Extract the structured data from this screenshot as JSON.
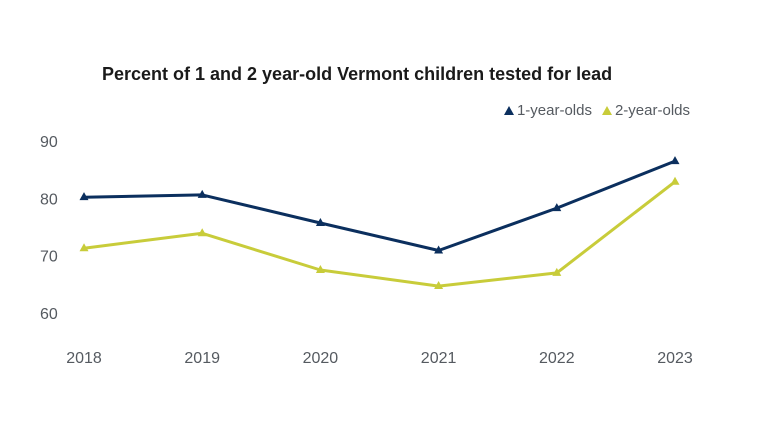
{
  "chart_data": {
    "type": "line",
    "title": "Percent of 1 and 2 year-old Vermont children tested for lead",
    "xlabel": "",
    "ylabel": "",
    "categories": [
      "2018",
      "2019",
      "2020",
      "2021",
      "2022",
      "2023"
    ],
    "y_ticks": [
      60,
      70,
      80,
      90
    ],
    "ylim": [
      60,
      90
    ],
    "grid": false,
    "legend_position": "top-right",
    "series": [
      {
        "name": "1-year-olds",
        "color": "#0b2f5e",
        "values": [
          80.2,
          80.6,
          75.7,
          70.9,
          78.3,
          86.5
        ]
      },
      {
        "name": "2-year-olds",
        "color": "#c8cc3a",
        "values": [
          71.3,
          73.9,
          67.5,
          64.7,
          67.0,
          82.9
        ]
      }
    ]
  }
}
